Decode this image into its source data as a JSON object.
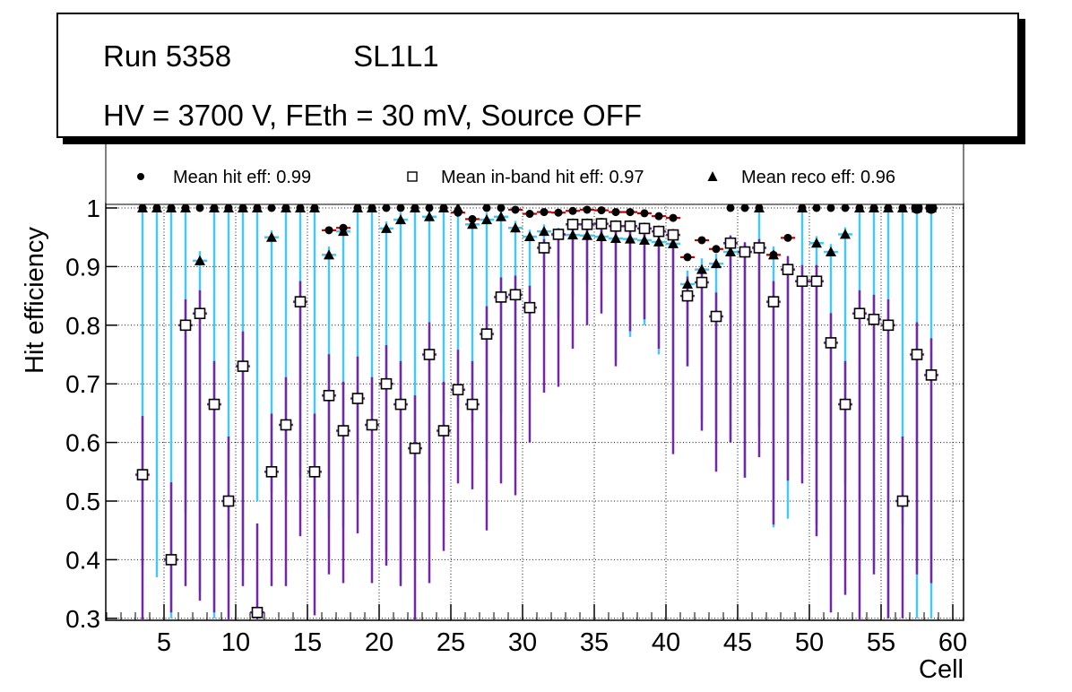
{
  "title_box": {
    "run": "Run 5358",
    "layer": "SL1L1",
    "conditions": "HV = 3700 V, FEth = 30 mV, Source OFF"
  },
  "legend": {
    "entries": [
      {
        "marker": "circle",
        "label": "Mean hit  eff: 0.99"
      },
      {
        "marker": "square",
        "label": "Mean in-band hit eff: 0.97"
      },
      {
        "marker": "triangle",
        "label": "Mean reco eff: 0.96"
      }
    ]
  },
  "colors": {
    "marker": "#000000",
    "hit_err": "#c80000",
    "inband_err": "#7326a5",
    "reco_err": "#45c9f0",
    "frame": "#000000",
    "grid": "#111111",
    "background": "#ffffff"
  },
  "chart_data": {
    "type": "scatter",
    "title": "",
    "xlabel": "Cell",
    "ylabel": "Hit efficiency",
    "x_ticks": [
      5,
      10,
      15,
      20,
      25,
      30,
      35,
      40,
      45,
      50,
      55,
      60
    ],
    "y_ticks": [
      "1",
      "0.9",
      "0.8",
      "0.7",
      "0.6",
      "0.5",
      "0.4",
      "0.3"
    ],
    "y_tick_values": [
      1,
      0.9,
      0.8,
      0.7,
      0.6,
      0.5,
      0.4,
      0.3
    ],
    "xlim": [
      0.94,
      60.75
    ],
    "ylim": [
      0.2966,
      1.0076
    ],
    "grid": "dotted-both",
    "legend_position": "top-inside",
    "series_meta": [
      {
        "name": "Mean hit eff",
        "marker": "circle",
        "mean": 0.99,
        "err_color": "#c80000"
      },
      {
        "name": "Mean in-band hit eff",
        "marker": "square",
        "mean": 0.97,
        "err_color": "#7326a5"
      },
      {
        "name": "Mean reco eff",
        "marker": "triangle",
        "mean": 0.96,
        "err_color": "#45c9f0"
      }
    ],
    "large_markers": [
      57.5,
      58.5
    ],
    "cells": [
      {
        "cell": 3.5,
        "hit": 1.0,
        "inband": 0.545,
        "inband_lo": 0.295,
        "reco": 1.0,
        "reco_lo": 0.39
      },
      {
        "cell": 4.5,
        "hit": 1.0,
        "inband": null,
        "inband_lo": null,
        "reco": 1.0,
        "reco_lo": 0.37
      },
      {
        "cell": 5.5,
        "hit": 1.0,
        "inband": 0.4,
        "inband_lo": 0.31,
        "reco": 1.0,
        "reco_lo": 0.3
      },
      {
        "cell": 6.5,
        "hit": 1.0,
        "inband": 0.8,
        "inband_lo": 0.355,
        "reco": 1.0,
        "reco_lo": 0.48
      },
      {
        "cell": 7.5,
        "hit": 1.0,
        "inband": 0.82,
        "inband_lo": 0.33,
        "reco": 0.91,
        "reco_lo": 0.345
      },
      {
        "cell": 8.5,
        "hit": 1.0,
        "inband": 0.665,
        "inband_lo": 0.31,
        "reco": 1.0,
        "reco_lo": 0.3
      },
      {
        "cell": 9.5,
        "hit": 1.0,
        "inband": 0.5,
        "inband_lo": 0.295,
        "reco": 1.0,
        "reco_lo": 0.42
      },
      {
        "cell": 10.5,
        "hit": 1.0,
        "inband": 0.73,
        "inband_lo": 0.355,
        "reco": 1.0,
        "reco_lo": 0.39
      },
      {
        "cell": 11.5,
        "hit": 1.0,
        "inband": 0.31,
        "inband_lo": 0.295,
        "reco": 1.0,
        "reco_lo": 0.5
      },
      {
        "cell": 12.5,
        "hit": 1.0,
        "inband": 0.55,
        "inband_lo": 0.355,
        "reco": 0.95,
        "reco_lo": 0.515
      },
      {
        "cell": 13.5,
        "hit": 1.0,
        "inband": 0.63,
        "inband_lo": 0.355,
        "reco": 1.0,
        "reco_lo": 0.51
      },
      {
        "cell": 14.5,
        "hit": 1.0,
        "inband": 0.84,
        "inband_lo": 0.44,
        "reco": 1.0,
        "reco_lo": 0.54
      },
      {
        "cell": 15.5,
        "hit": 1.0,
        "inband": 0.55,
        "inband_lo": 0.305,
        "reco": 1.0,
        "reco_lo": 0.52
      },
      {
        "cell": 16.5,
        "hit": 0.962,
        "inband": 0.68,
        "inband_lo": 0.375,
        "reco": 0.92,
        "reco_lo": 0.47
      },
      {
        "cell": 17.5,
        "hit": 0.966,
        "inband": 0.62,
        "inband_lo": 0.36,
        "reco": 0.96,
        "reco_lo": 0.455
      },
      {
        "cell": 18.5,
        "hit": 1.0,
        "inband": 0.675,
        "inband_lo": 0.445,
        "reco": 1.0,
        "reco_lo": 0.51
      },
      {
        "cell": 19.5,
        "hit": 1.0,
        "inband": 0.63,
        "inband_lo": 0.36,
        "reco": 1.0,
        "reco_lo": 0.65
      },
      {
        "cell": 20.5,
        "hit": 1.0,
        "inband": 0.7,
        "inband_lo": 0.39,
        "reco": 0.965,
        "reco_lo": 0.415
      },
      {
        "cell": 21.5,
        "hit": 1.0,
        "inband": 0.665,
        "inband_lo": 0.355,
        "reco": 0.98,
        "reco_lo": 0.36
      },
      {
        "cell": 22.5,
        "hit": 1.0,
        "inband": 0.59,
        "inband_lo": 0.295,
        "reco": 1.0,
        "reco_lo": 0.47
      },
      {
        "cell": 23.5,
        "hit": 1.0,
        "inband": 0.75,
        "inband_lo": 0.36,
        "reco": 0.985,
        "reco_lo": 0.53
      },
      {
        "cell": 24.5,
        "hit": 1.0,
        "inband": 0.62,
        "inband_lo": 0.415,
        "reco": 1.0,
        "reco_lo": 0.63
      },
      {
        "cell": 25.5,
        "hit": 0.992,
        "inband": 0.69,
        "inband_lo": 0.53,
        "reco": 1.0,
        "reco_lo": 0.66
      },
      {
        "cell": 26.5,
        "hit": 0.981,
        "inband": 0.665,
        "inband_lo": 0.52,
        "reco": 0.972,
        "reco_lo": 0.635
      },
      {
        "cell": 27.5,
        "hit": 1.0,
        "inband": 0.785,
        "inband_lo": 0.45,
        "reco": 0.98,
        "reco_lo": 0.57
      },
      {
        "cell": 28.5,
        "hit": 1.0,
        "inband": 0.848,
        "inband_lo": 0.53,
        "reco": 0.985,
        "reco_lo": 0.65
      },
      {
        "cell": 29.5,
        "hit": 0.997,
        "inband": 0.852,
        "inband_lo": 0.51,
        "reco": 0.966,
        "reco_lo": 0.62
      },
      {
        "cell": 30.5,
        "hit": 0.99,
        "inband": 0.83,
        "inband_lo": 0.6,
        "reco": 0.951,
        "reco_lo": 0.74
      },
      {
        "cell": 31.5,
        "hit": 0.993,
        "inband": 0.932,
        "inband_lo": 0.685,
        "reco": 0.96,
        "reco_lo": 0.9
      },
      {
        "cell": 32.5,
        "hit": 0.992,
        "inband": 0.955,
        "inband_lo": 0.695,
        "reco": 0.954,
        "reco_lo": 0.81
      },
      {
        "cell": 33.5,
        "hit": 0.995,
        "inband": 0.972,
        "inband_lo": 0.76,
        "reco": 0.954,
        "reco_lo": 0.85
      },
      {
        "cell": 34.5,
        "hit": 0.997,
        "inband": 0.972,
        "inband_lo": 0.8,
        "reco": 0.953,
        "reco_lo": 0.87
      },
      {
        "cell": 35.5,
        "hit": 0.996,
        "inband": 0.973,
        "inband_lo": 0.82,
        "reco": 0.951,
        "reco_lo": 0.89
      },
      {
        "cell": 36.5,
        "hit": 0.993,
        "inband": 0.969,
        "inband_lo": 0.73,
        "reco": 0.948,
        "reco_lo": 0.74
      },
      {
        "cell": 37.5,
        "hit": 0.993,
        "inband": 0.969,
        "inband_lo": 0.79,
        "reco": 0.947,
        "reco_lo": 0.78
      },
      {
        "cell": 38.5,
        "hit": 0.991,
        "inband": 0.965,
        "inband_lo": 0.81,
        "reco": 0.945,
        "reco_lo": 0.8
      },
      {
        "cell": 39.5,
        "hit": 0.986,
        "inband": 0.96,
        "inband_lo": 0.76,
        "reco": 0.942,
        "reco_lo": 0.75
      },
      {
        "cell": 40.5,
        "hit": 0.983,
        "inband": 0.954,
        "inband_lo": 0.58,
        "reco": 0.939,
        "reco_lo": 0.62
      },
      {
        "cell": 41.5,
        "hit": 0.916,
        "inband": 0.85,
        "inband_lo": 0.73,
        "reco": 0.87,
        "reco_lo": 0.73
      },
      {
        "cell": 42.5,
        "hit": 0.945,
        "inband": 0.873,
        "inband_lo": 0.62,
        "reco": 0.895,
        "reco_lo": 0.64
      },
      {
        "cell": 43.5,
        "hit": 0.93,
        "inband": 0.815,
        "inband_lo": 0.55,
        "reco": 0.905,
        "reco_lo": 0.62
      },
      {
        "cell": 44.5,
        "hit": 1.0,
        "inband": 0.94,
        "inband_lo": 0.6,
        "reco": 0.925,
        "reco_lo": 0.6
      },
      {
        "cell": 45.5,
        "hit": 1.0,
        "inband": 0.925,
        "inband_lo": 0.54,
        "reco": 0.925,
        "reco_lo": 0.54
      },
      {
        "cell": 46.5,
        "hit": 1.0,
        "inband": 0.932,
        "inband_lo": 0.575,
        "reco": 1.0,
        "reco_lo": 0.625
      },
      {
        "cell": 47.5,
        "hit": 0.92,
        "inband": 0.84,
        "inband_lo": 0.46,
        "reco": 0.92,
        "reco_lo": 0.455
      },
      {
        "cell": 48.5,
        "hit": 0.949,
        "inband": 0.895,
        "inband_lo": 0.535,
        "reco": 0.895,
        "reco_lo": 0.47
      },
      {
        "cell": 49.5,
        "hit": 1.0,
        "inband": 0.875,
        "inband_lo": 0.53,
        "reco": 1.0,
        "reco_lo": 0.58
      },
      {
        "cell": 50.5,
        "hit": 1.0,
        "inband": 0.875,
        "inband_lo": 0.44,
        "reco": 0.94,
        "reco_lo": 0.46
      },
      {
        "cell": 51.5,
        "hit": 1.0,
        "inband": 0.77,
        "inband_lo": 0.31,
        "reco": 0.925,
        "reco_lo": 0.39
      },
      {
        "cell": 52.5,
        "hit": 1.0,
        "inband": 0.665,
        "inband_lo": 0.34,
        "reco": 0.955,
        "reco_lo": 0.53
      },
      {
        "cell": 53.5,
        "hit": 1.0,
        "inband": 0.82,
        "inband_lo": 0.295,
        "reco": 1.0,
        "reco_lo": 0.39
      },
      {
        "cell": 54.5,
        "hit": 1.0,
        "inband": 0.81,
        "inband_lo": 0.375,
        "reco": 1.0,
        "reco_lo": 0.385
      },
      {
        "cell": 55.5,
        "hit": 1.0,
        "inband": 0.8,
        "inband_lo": 0.3,
        "reco": 1.0,
        "reco_lo": 0.3
      },
      {
        "cell": 56.5,
        "hit": 1.0,
        "inband": 0.5,
        "inband_lo": 0.3,
        "reco": 1.0,
        "reco_lo": 0.46
      },
      {
        "cell": 57.5,
        "hit": 1.0,
        "inband": 0.75,
        "inband_lo": 0.375,
        "reco": 1.0,
        "reco_lo": 0.3
      },
      {
        "cell": 58.5,
        "hit": 1.0,
        "inband": 0.715,
        "inband_lo": 0.36,
        "reco": 1.0,
        "reco_lo": 0.3
      }
    ]
  }
}
